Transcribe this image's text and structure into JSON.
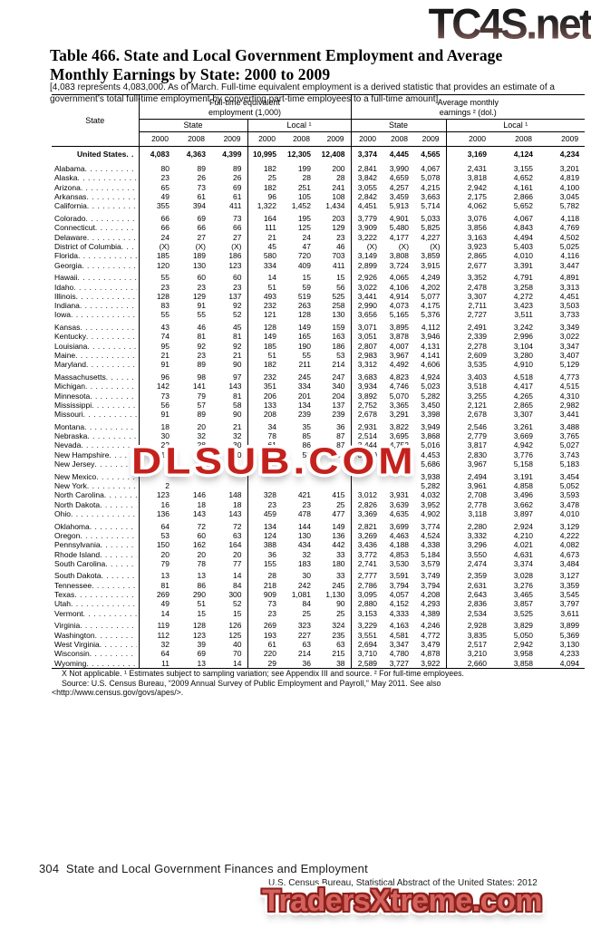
{
  "watermarks": {
    "top": "TC4S.net",
    "middle": "DLSUB.COM",
    "bottom": "TradersXtreme.com"
  },
  "title": "Table 466. State and Local Government Employment and Average Monthly Earnings by State: 2000 to 2009",
  "note": "[4,083 represents 4,083,000. As of March. Full-time equivalent employment is a derived statistic that provides an estimate of a government’s total full-time employment by converting part-time employees to a full-time amount]",
  "table": {
    "state_header": "State",
    "group_employment": "Full-time equivalent employment (1,000)",
    "group_earnings": "Average monthly earnings ² (dol.)",
    "sub_state": "State",
    "sub_local": "Local ¹",
    "years": [
      "2000",
      "2008",
      "2009"
    ],
    "rows": [
      {
        "l": "United States",
        "b": true,
        "v": [
          "4,083",
          "4,363",
          "4,399",
          "10,995",
          "12,305",
          "12,408",
          "3,374",
          "4,445",
          "4,565",
          "3,169",
          "4,124",
          "4,234"
        ]
      },
      {
        "l": "Alabama",
        "g": true,
        "v": [
          "80",
          "89",
          "89",
          "182",
          "199",
          "200",
          "2,841",
          "3,990",
          "4,067",
          "2,431",
          "3,155",
          "3,201"
        ]
      },
      {
        "l": "Alaska",
        "v": [
          "23",
          "26",
          "26",
          "25",
          "28",
          "28",
          "3,842",
          "4,659",
          "5,078",
          "3,818",
          "4,652",
          "4,819"
        ]
      },
      {
        "l": "Arizona",
        "v": [
          "65",
          "73",
          "69",
          "182",
          "251",
          "241",
          "3,055",
          "4,257",
          "4,215",
          "2,942",
          "4,161",
          "4,100"
        ]
      },
      {
        "l": "Arkansas",
        "v": [
          "49",
          "61",
          "61",
          "96",
          "105",
          "108",
          "2,842",
          "3,459",
          "3,663",
          "2,175",
          "2,866",
          "3,045"
        ]
      },
      {
        "l": "California",
        "v": [
          "355",
          "394",
          "411",
          "1,322",
          "1,452",
          "1,434",
          "4,451",
          "5,913",
          "5,714",
          "4,062",
          "5,652",
          "5,782"
        ]
      },
      {
        "l": "Colorado",
        "g": true,
        "v": [
          "66",
          "69",
          "73",
          "164",
          "195",
          "203",
          "3,779",
          "4,901",
          "5,033",
          "3,076",
          "4,067",
          "4,118"
        ]
      },
      {
        "l": "Connecticut",
        "v": [
          "66",
          "66",
          "66",
          "111",
          "125",
          "129",
          "3,909",
          "5,480",
          "5,825",
          "3,856",
          "4,843",
          "4,769"
        ]
      },
      {
        "l": "Delaware",
        "v": [
          "24",
          "27",
          "27",
          "21",
          "24",
          "23",
          "3,222",
          "4,177",
          "4,227",
          "3,163",
          "4,494",
          "4,502"
        ]
      },
      {
        "l": "District of Columbia",
        "v": [
          "(X)",
          "(X)",
          "(X)",
          "45",
          "47",
          "46",
          "(X)",
          "(X)",
          "(X)",
          "3,923",
          "5,403",
          "5,025"
        ]
      },
      {
        "l": "Florida",
        "v": [
          "185",
          "189",
          "186",
          "580",
          "720",
          "703",
          "3,149",
          "3,808",
          "3,859",
          "2,865",
          "4,010",
          "4,116"
        ]
      },
      {
        "l": "Georgia",
        "v": [
          "120",
          "130",
          "123",
          "334",
          "409",
          "411",
          "2,899",
          "3,724",
          "3,915",
          "2,677",
          "3,391",
          "3,447"
        ]
      },
      {
        "l": "Hawaii",
        "g": true,
        "v": [
          "55",
          "60",
          "60",
          "14",
          "15",
          "15",
          "2,926",
          "4,065",
          "4,249",
          "3,352",
          "4,791",
          "4,891"
        ]
      },
      {
        "l": "Idaho",
        "v": [
          "23",
          "23",
          "23",
          "51",
          "59",
          "56",
          "3,022",
          "4,106",
          "4,202",
          "2,478",
          "3,258",
          "3,313"
        ]
      },
      {
        "l": "Illinois",
        "v": [
          "128",
          "129",
          "137",
          "493",
          "519",
          "525",
          "3,441",
          "4,914",
          "5,077",
          "3,307",
          "4,272",
          "4,451"
        ]
      },
      {
        "l": "Indiana",
        "v": [
          "83",
          "91",
          "92",
          "232",
          "263",
          "258",
          "2,990",
          "4,073",
          "4,175",
          "2,711",
          "3,423",
          "3,503"
        ]
      },
      {
        "l": "Iowa",
        "v": [
          "55",
          "55",
          "52",
          "121",
          "128",
          "130",
          "3,656",
          "5,165",
          "5,376",
          "2,727",
          "3,511",
          "3,733"
        ]
      },
      {
        "l": "Kansas",
        "g": true,
        "v": [
          "43",
          "46",
          "45",
          "128",
          "149",
          "159",
          "3,071",
          "3,895",
          "4,112",
          "2,491",
          "3,242",
          "3,349"
        ]
      },
      {
        "l": "Kentucky",
        "v": [
          "74",
          "81",
          "81",
          "149",
          "165",
          "163",
          "3,051",
          "3,878",
          "3,946",
          "2,339",
          "2,996",
          "3,022"
        ]
      },
      {
        "l": "Louisiana",
        "v": [
          "95",
          "92",
          "92",
          "185",
          "190",
          "186",
          "2,807",
          "4,007",
          "4,131",
          "2,278",
          "3,104",
          "3,347"
        ]
      },
      {
        "l": "Maine",
        "v": [
          "21",
          "23",
          "21",
          "51",
          "55",
          "53",
          "2,983",
          "3,967",
          "4,141",
          "2,609",
          "3,280",
          "3,407"
        ]
      },
      {
        "l": "Maryland",
        "v": [
          "91",
          "89",
          "90",
          "182",
          "211",
          "214",
          "3,312",
          "4,492",
          "4,606",
          "3,535",
          "4,910",
          "5,129"
        ]
      },
      {
        "l": "Massachusetts",
        "g": true,
        "v": [
          "96",
          "98",
          "97",
          "232",
          "245",
          "247",
          "3,683",
          "4,823",
          "4,924",
          "3,403",
          "4,518",
          "4,773"
        ]
      },
      {
        "l": "Michigan",
        "v": [
          "142",
          "141",
          "143",
          "351",
          "334",
          "340",
          "3,934",
          "4,746",
          "5,023",
          "3,518",
          "4,417",
          "4,515"
        ]
      },
      {
        "l": "Minnesota",
        "v": [
          "73",
          "79",
          "81",
          "206",
          "201",
          "204",
          "3,892",
          "5,070",
          "5,282",
          "3,255",
          "4,265",
          "4,310"
        ]
      },
      {
        "l": "Mississippi",
        "v": [
          "56",
          "57",
          "58",
          "133",
          "134",
          "137",
          "2,752",
          "3,365",
          "3,450",
          "2,121",
          "2,865",
          "2,982"
        ]
      },
      {
        "l": "Missouri",
        "v": [
          "91",
          "89",
          "90",
          "208",
          "239",
          "239",
          "2,678",
          "3,291",
          "3,398",
          "2,678",
          "3,307",
          "3,441"
        ]
      },
      {
        "l": "Montana",
        "g": true,
        "v": [
          "18",
          "20",
          "21",
          "34",
          "35",
          "36",
          "2,931",
          "3,822",
          "3,949",
          "2,546",
          "3,261",
          "3,488"
        ]
      },
      {
        "l": "Nebraska",
        "v": [
          "30",
          "32",
          "32",
          "78",
          "85",
          "87",
          "2,514",
          "3,695",
          "3,868",
          "2,779",
          "3,669",
          "3,765"
        ]
      },
      {
        "l": "Nevada",
        "v": [
          "22",
          "28",
          "30",
          "61",
          "86",
          "87",
          "3,444",
          "4,752",
          "5,016",
          "3,817",
          "4,942",
          "5,027"
        ]
      },
      {
        "l": "New Hampshire",
        "v": [
          "19",
          "20",
          "20",
          "46",
          "52",
          "54",
          "3,079",
          "4,367",
          "4,453",
          "2,830",
          "3,776",
          "3,743"
        ]
      },
      {
        "l": "New Jersey",
        "v": [
          "1",
          "",
          "",
          "",
          "",
          "",
          "",
          "",
          "5,686",
          "3,967",
          "5,158",
          "5,183"
        ]
      },
      {
        "l": "New Mexico",
        "g": true,
        "v": [
          "",
          "",
          "",
          "",
          "",
          "",
          "",
          "",
          "3,938",
          "2,494",
          "3,191",
          "3,454"
        ]
      },
      {
        "l": "New York",
        "v": [
          "2",
          "",
          "",
          "",
          "",
          "",
          "",
          "",
          "5,282",
          "3,961",
          "4,858",
          "5,052"
        ]
      },
      {
        "l": "North Carolina",
        "v": [
          "123",
          "146",
          "148",
          "328",
          "421",
          "415",
          "3,012",
          "3,931",
          "4,032",
          "2,708",
          "3,496",
          "3,593"
        ]
      },
      {
        "l": "North Dakota",
        "v": [
          "16",
          "18",
          "18",
          "23",
          "23",
          "25",
          "2,826",
          "3,639",
          "3,952",
          "2,778",
          "3,662",
          "3,478"
        ]
      },
      {
        "l": "Ohio",
        "v": [
          "136",
          "143",
          "143",
          "459",
          "478",
          "477",
          "3,369",
          "4,635",
          "4,902",
          "3,118",
          "3,897",
          "4,010"
        ]
      },
      {
        "l": "Oklahoma",
        "g": true,
        "v": [
          "64",
          "72",
          "72",
          "134",
          "144",
          "149",
          "2,821",
          "3,699",
          "3,774",
          "2,280",
          "2,924",
          "3,129"
        ]
      },
      {
        "l": "Oregon",
        "v": [
          "53",
          "60",
          "63",
          "124",
          "130",
          "136",
          "3,269",
          "4,463",
          "4,524",
          "3,332",
          "4,210",
          "4,222"
        ]
      },
      {
        "l": "Pennsylvania",
        "v": [
          "150",
          "162",
          "164",
          "388",
          "434",
          "442",
          "3,436",
          "4,188",
          "4,338",
          "3,296",
          "4,021",
          "4,082"
        ]
      },
      {
        "l": "Rhode Island",
        "v": [
          "20",
          "20",
          "20",
          "36",
          "32",
          "33",
          "3,772",
          "4,853",
          "5,184",
          "3,550",
          "4,631",
          "4,673"
        ]
      },
      {
        "l": "South Carolina",
        "v": [
          "79",
          "78",
          "77",
          "155",
          "183",
          "180",
          "2,741",
          "3,530",
          "3,579",
          "2,474",
          "3,374",
          "3,484"
        ]
      },
      {
        "l": "South Dakota",
        "g": true,
        "v": [
          "13",
          "13",
          "14",
          "28",
          "30",
          "33",
          "2,777",
          "3,591",
          "3,749",
          "2,359",
          "3,028",
          "3,127"
        ]
      },
      {
        "l": "Tennessee",
        "v": [
          "81",
          "86",
          "84",
          "218",
          "242",
          "245",
          "2,786",
          "3,794",
          "3,794",
          "2,631",
          "3,276",
          "3,359"
        ]
      },
      {
        "l": "Texas",
        "v": [
          "269",
          "290",
          "300",
          "909",
          "1,081",
          "1,130",
          "3,095",
          "4,057",
          "4,208",
          "2,643",
          "3,465",
          "3,545"
        ]
      },
      {
        "l": "Utah",
        "v": [
          "49",
          "51",
          "52",
          "73",
          "84",
          "90",
          "2,880",
          "4,152",
          "4,293",
          "2,836",
          "3,857",
          "3,797"
        ]
      },
      {
        "l": "Vermont",
        "v": [
          "14",
          "15",
          "15",
          "23",
          "25",
          "25",
          "3,153",
          "4,333",
          "4,389",
          "2,534",
          "3,525",
          "3,611"
        ]
      },
      {
        "l": "Virginia",
        "g": true,
        "v": [
          "119",
          "128",
          "126",
          "269",
          "323",
          "324",
          "3,229",
          "4,163",
          "4,246",
          "2,928",
          "3,829",
          "3,899"
        ]
      },
      {
        "l": "Washington",
        "v": [
          "112",
          "123",
          "125",
          "193",
          "227",
          "235",
          "3,551",
          "4,581",
          "4,772",
          "3,835",
          "5,050",
          "5,369"
        ]
      },
      {
        "l": "West Virginia",
        "v": [
          "32",
          "39",
          "40",
          "61",
          "63",
          "63",
          "2,694",
          "3,347",
          "3,479",
          "2,517",
          "2,942",
          "3,130"
        ]
      },
      {
        "l": "Wisconsin",
        "v": [
          "64",
          "69",
          "70",
          "220",
          "214",
          "215",
          "3,710",
          "4,780",
          "4,878",
          "3,210",
          "3,958",
          "4,233"
        ]
      },
      {
        "l": "Wyoming",
        "v": [
          "11",
          "13",
          "14",
          "29",
          "36",
          "38",
          "2,589",
          "3,727",
          "3,922",
          "2,660",
          "3,858",
          "4,094"
        ]
      }
    ]
  },
  "footnotes": {
    "line1": "X Not applicable. ¹ Estimates subject to sampling variation; see Appendix III and source. ² For full-time employees.",
    "line2": "Source: U.S. Census Bureau, “2009 Annual Survey of Public Employment and Payroll,” May 2011. See also",
    "line3": "<http://www.census.gov/govs/apes/>."
  },
  "footer": {
    "page_line": "304  State and Local Government Finances and Employment",
    "source_line": "U.S. Census Bureau, Statistical Abstract of the United States: 2012"
  }
}
